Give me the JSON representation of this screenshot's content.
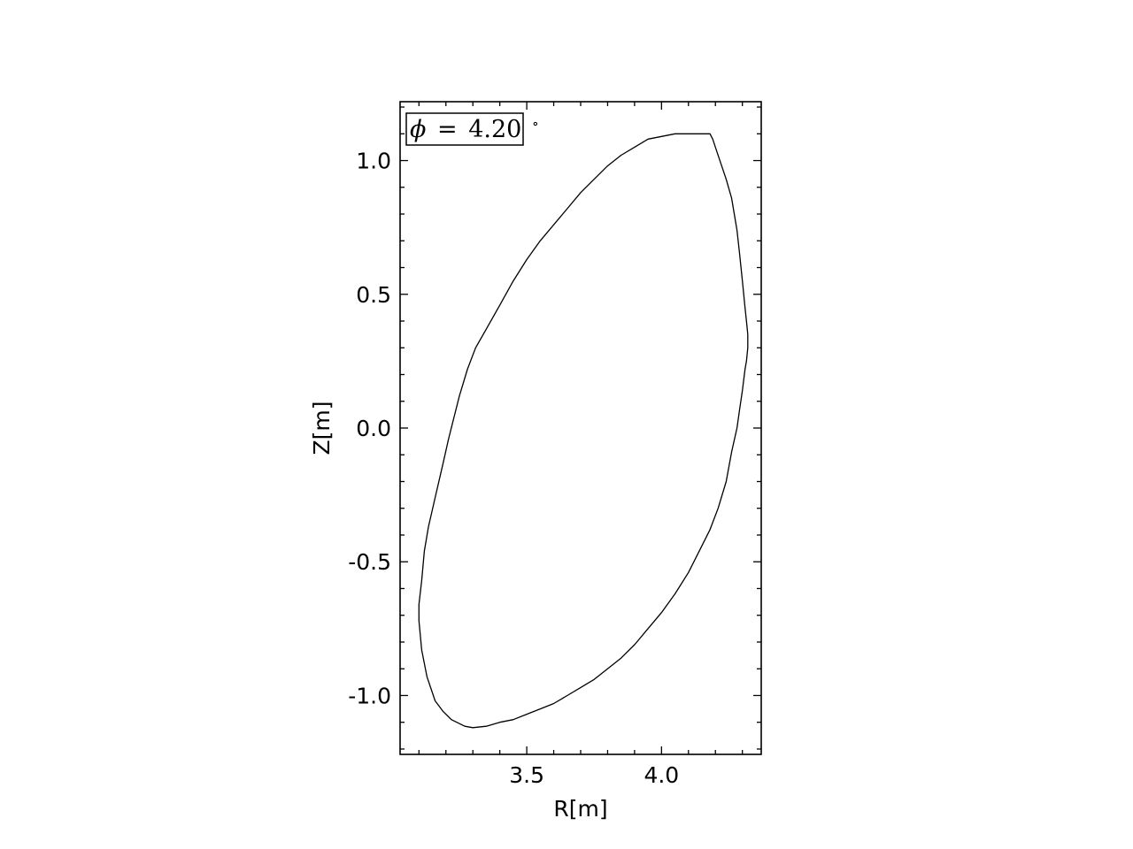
{
  "chart_data": {
    "type": "line",
    "title": "",
    "xlabel": "R[m]",
    "ylabel": "Z[m]",
    "xlim": [
      3.03,
      4.37
    ],
    "ylim": [
      -1.22,
      1.22
    ],
    "xticks": [
      3.5,
      4.0
    ],
    "xtick_labels": [
      "3.5",
      "4.0"
    ],
    "yticks": [
      1.0,
      0.5,
      0.0,
      -0.5,
      -1.0
    ],
    "ytick_labels": [
      "1.0",
      "0.5",
      "0.0",
      "-0.5",
      "-1.0"
    ],
    "x_minor_step": 0.1,
    "y_minor_step": 0.1,
    "ticks_direction": "in",
    "ticks_on_all_sides": true,
    "grid": false,
    "line_color": "#000000",
    "annotation": {
      "symbol": "ϕ",
      "equals": "=",
      "value": "4.20",
      "degree": "∘",
      "placement": "top-left",
      "boxed": true
    },
    "series": [
      {
        "x": [
          4.18,
          4.19,
          4.2,
          4.22,
          4.24,
          4.26,
          4.28,
          4.29,
          4.3,
          4.31,
          4.315,
          4.32,
          4.32,
          4.315,
          4.31,
          4.3,
          4.29,
          4.28,
          4.26,
          4.24,
          4.21,
          4.18,
          4.14,
          4.1,
          4.05,
          4.0,
          3.95,
          3.9,
          3.85,
          3.8,
          3.75,
          3.7,
          3.65,
          3.6,
          3.55,
          3.5,
          3.45,
          3.4,
          3.35,
          3.3,
          3.27,
          3.25,
          3.22,
          3.19,
          3.16,
          3.13,
          3.11,
          3.1,
          3.1,
          3.11,
          3.12,
          3.135,
          3.16,
          3.19,
          3.21,
          3.23,
          3.25,
          3.28,
          3.31,
          3.35,
          3.4,
          3.45,
          3.5,
          3.55,
          3.6,
          3.65,
          3.7,
          3.75,
          3.8,
          3.85,
          3.9,
          3.95,
          4.0,
          4.05,
          4.1,
          4.14,
          4.17,
          4.18
        ],
        "y": [
          1.1,
          1.08,
          1.05,
          0.99,
          0.93,
          0.86,
          0.74,
          0.65,
          0.55,
          0.45,
          0.4,
          0.35,
          0.3,
          0.25,
          0.22,
          0.14,
          0.07,
          0.0,
          -0.09,
          -0.2,
          -0.3,
          -0.38,
          -0.46,
          -0.54,
          -0.62,
          -0.69,
          -0.75,
          -0.81,
          -0.86,
          -0.9,
          -0.94,
          -0.97,
          -1.0,
          -1.03,
          -1.05,
          -1.07,
          -1.09,
          -1.1,
          -1.115,
          -1.12,
          -1.115,
          -1.105,
          -1.09,
          -1.06,
          -1.02,
          -0.93,
          -0.83,
          -0.72,
          -0.66,
          -0.57,
          -0.46,
          -0.37,
          -0.26,
          -0.13,
          -0.04,
          0.04,
          0.12,
          0.22,
          0.3,
          0.37,
          0.46,
          0.55,
          0.63,
          0.7,
          0.76,
          0.82,
          0.88,
          0.93,
          0.98,
          1.02,
          1.05,
          1.08,
          1.09,
          1.1,
          1.1,
          1.1,
          1.1,
          1.1
        ]
      }
    ]
  }
}
